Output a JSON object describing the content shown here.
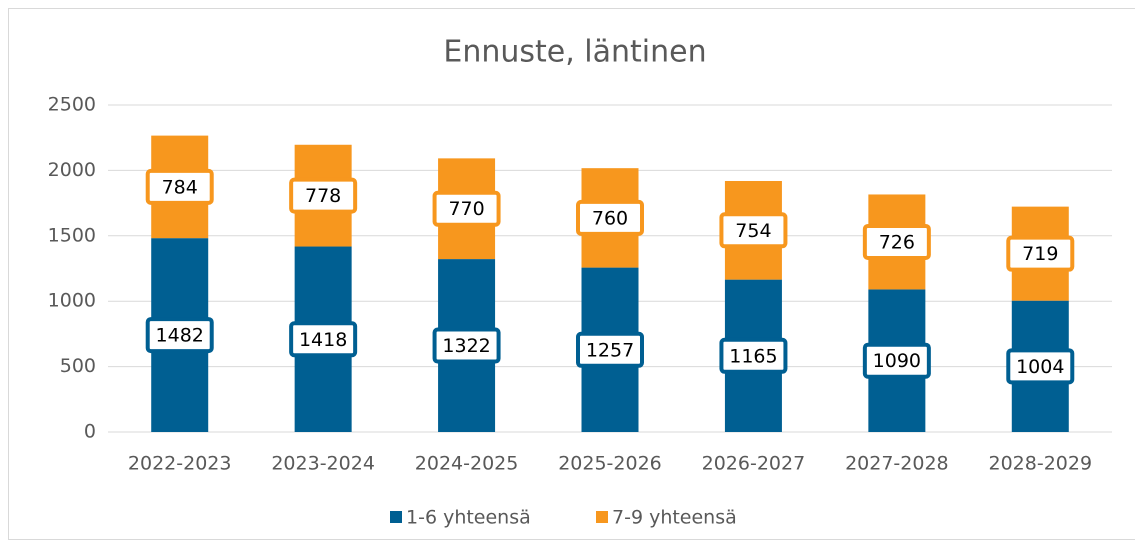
{
  "chart_data": {
    "type": "stacked_bar",
    "title": "Ennuste, läntinen",
    "categories": [
      "2022-2023",
      "2023-2024",
      "2024-2025",
      "2025-2026",
      "2026-2027",
      "2027-2028",
      "2028-2029"
    ],
    "series": [
      {
        "name": "1-6 yhteensä",
        "color": "#005f92",
        "values": [
          1482,
          1418,
          1322,
          1257,
          1165,
          1090,
          1004
        ]
      },
      {
        "name": "7-9 yhteensä",
        "color": "#f7971e",
        "values": [
          784,
          778,
          770,
          760,
          754,
          726,
          719
        ]
      }
    ],
    "ylim": [
      0,
      2500
    ],
    "yticks": [
      0,
      500,
      1000,
      1500,
      2000,
      2500
    ],
    "grid": true,
    "legend": "bottom"
  }
}
